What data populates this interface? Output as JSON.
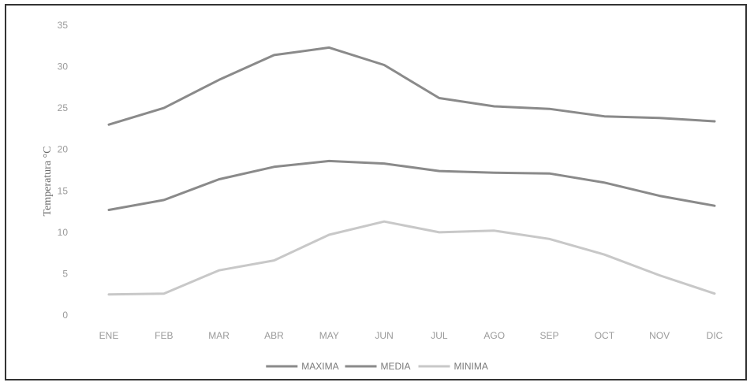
{
  "chart_data": {
    "type": "line",
    "title": "",
    "xlabel": "",
    "ylabel": "Temperatura °C",
    "categories": [
      "ENE",
      "FEB",
      "MAR",
      "ABR",
      "MAY",
      "JUN",
      "JUL",
      "AGO",
      "SEP",
      "OCT",
      "NOV",
      "DIC"
    ],
    "y_ticks": [
      "0",
      "5",
      "10",
      "15",
      "20",
      "25",
      "30",
      "35"
    ],
    "ylim": [
      0,
      35
    ],
    "grid": false,
    "legend_position": "bottom",
    "series": [
      {
        "name": "MAXIMA",
        "color": "#8a8a8a",
        "values": [
          23.0,
          25.0,
          28.4,
          31.4,
          32.3,
          30.2,
          26.2,
          25.2,
          24.9,
          24.0,
          23.8,
          23.4
        ]
      },
      {
        "name": "MEDIA",
        "color": "#8a8a8a",
        "values": [
          12.7,
          13.9,
          16.4,
          17.9,
          18.6,
          18.3,
          17.4,
          17.2,
          17.1,
          16.0,
          14.4,
          13.2
        ]
      },
      {
        "name": "MINIMA",
        "color": "#c8c8c8",
        "values": [
          2.5,
          2.6,
          5.4,
          6.6,
          9.7,
          11.3,
          10.0,
          10.2,
          9.2,
          7.3,
          4.8,
          2.6
        ]
      }
    ]
  }
}
